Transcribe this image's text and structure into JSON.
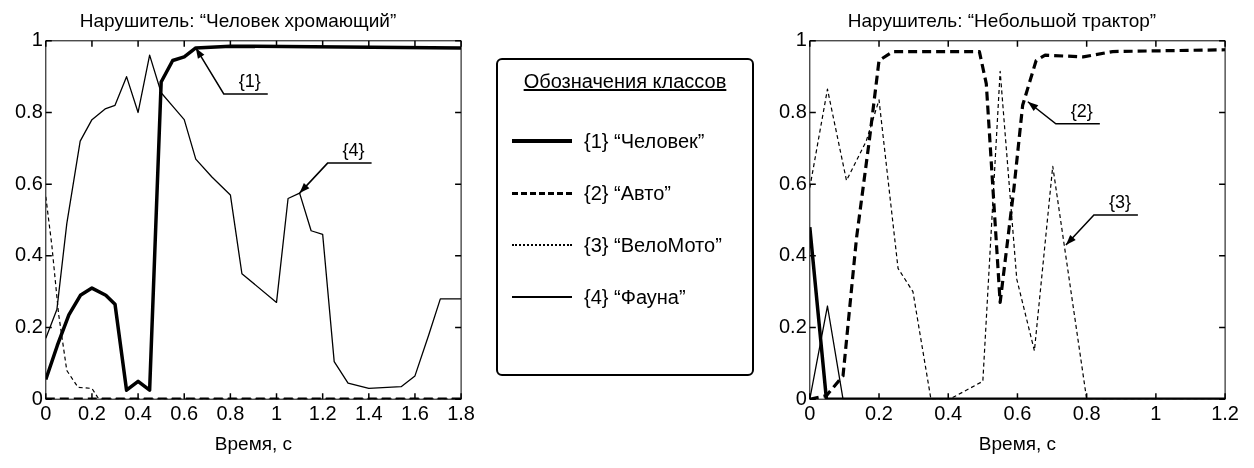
{
  "chart_data": [
    {
      "type": "line",
      "title": "Нарушитель: “Человек хромающий”",
      "xlabel": "Время, с",
      "legend": "right",
      "legend_title": "Обозначения классов",
      "xlim": [
        0,
        1.8
      ],
      "xticks": [
        0,
        0.2,
        0.4,
        0.6,
        0.8,
        1,
        1.2,
        1.4,
        1.6,
        1.8
      ],
      "ylim": [
        0,
        1
      ],
      "yticks": [
        0,
        0.2,
        0.4,
        0.6,
        0.8,
        1
      ],
      "series": [
        {
          "name": "{1} “Человек”",
          "color": "#000000",
          "line_style": "solid",
          "x": [
            0,
            0.05,
            0.1,
            0.15,
            0.2,
            0.26,
            0.3,
            0.35,
            0.4,
            0.45,
            0.5,
            0.55,
            0.6,
            0.65,
            0.8,
            1.8
          ],
          "values": [
            0.055,
            0.15,
            0.235,
            0.29,
            0.31,
            0.29,
            0.265,
            0.025,
            0.05,
            0.025,
            0.885,
            0.945,
            0.955,
            0.98,
            0.985,
            0.98
          ]
        },
        {
          "name": "{2} “Авто”",
          "color": "#000000",
          "line_style": "dashed",
          "x": [
            0,
            1.8
          ],
          "values": [
            0,
            0
          ]
        },
        {
          "name": "{3} “ВелоМото”",
          "color": "#000000",
          "line_style": "dotted",
          "x": [
            0,
            0.026,
            0.055,
            0.091,
            0.14,
            0.2,
            0.23,
            1.8
          ],
          "values": [
            0.565,
            0.43,
            0.24,
            0.08,
            0.033,
            0.03,
            0,
            0
          ]
        },
        {
          "name": "{4} “Фауна”",
          "color": "#000000",
          "line_style": "solid",
          "x": [
            0,
            0.048,
            0.091,
            0.149,
            0.2,
            0.257,
            0.3,
            0.35,
            0.4,
            0.45,
            0.5,
            0.56,
            0.6,
            0.65,
            0.72,
            0.8,
            0.85,
            1.0,
            1.05,
            1.1,
            1.15,
            1.2,
            1.25,
            1.31,
            1.4,
            1.54,
            1.6,
            1.66,
            1.71,
            1.8
          ],
          "values": [
            0.17,
            0.25,
            0.49,
            0.72,
            0.78,
            0.81,
            0.82,
            0.9,
            0.8,
            0.96,
            0.855,
            0.81,
            0.78,
            0.67,
            0.62,
            0.57,
            0.35,
            0.27,
            0.56,
            0.575,
            0.47,
            0.46,
            0.105,
            0.045,
            0.03,
            0.035,
            0.065,
            0.18,
            0.28,
            0.28
          ]
        }
      ],
      "annotations": [
        {
          "text": "{1}",
          "x": 0.65,
          "y": 0.98
        },
        {
          "text": "{4}",
          "x": 1.1,
          "y": 0.575
        }
      ]
    },
    {
      "type": "line",
      "title": "Нарушитель: “Небольшой трактор”",
      "xlabel": "Время, с",
      "xlim": [
        0,
        1.2
      ],
      "xticks": [
        0,
        0.2,
        0.4,
        0.6,
        0.8,
        1,
        1.2
      ],
      "ylim": [
        0,
        1
      ],
      "yticks": [
        0,
        0.2,
        0.4,
        0.6,
        0.8,
        1
      ],
      "series": [
        {
          "color": "#000000",
          "line_style": "solid",
          "x": [
            0,
            0.048,
            1.2
          ],
          "values": [
            0.48,
            0,
            0
          ]
        },
        {
          "color": "#000000",
          "line_style": "dashed",
          "x": [
            0,
            0.048,
            0.096,
            0.135,
            0.173,
            0.2,
            0.24,
            0.49,
            0.51,
            0.55,
            0.59,
            0.615,
            0.654,
            0.68,
            0.79,
            0.875,
            1.2
          ],
          "values": [
            0,
            0.01,
            0.065,
            0.45,
            0.73,
            0.945,
            0.97,
            0.97,
            0.88,
            0.27,
            0.59,
            0.82,
            0.945,
            0.96,
            0.955,
            0.97,
            0.975
          ]
        },
        {
          "color": "#000000",
          "line_style": "dotted",
          "x": [
            0,
            0.051,
            0.106,
            0.163,
            0.2,
            0.255,
            0.298,
            0.35,
            0.404,
            0.5,
            0.55,
            0.598,
            0.649,
            0.702,
            0.8,
            1.2
          ],
          "values": [
            0.59,
            0.865,
            0.61,
            0.72,
            0.835,
            0.365,
            0.3,
            0,
            0,
            0.05,
            0.915,
            0.335,
            0.135,
            0.65,
            0,
            0
          ]
        },
        {
          "color": "#000000",
          "line_style": "solid",
          "x": [
            0,
            0.051,
            0.096,
            1.2
          ],
          "values": [
            0,
            0.26,
            0,
            0
          ]
        }
      ],
      "annotations": [
        {
          "text": "{2}",
          "x": 0.63,
          "y": 0.83
        },
        {
          "text": "{3}",
          "x": 0.74,
          "y": 0.43
        }
      ]
    }
  ]
}
